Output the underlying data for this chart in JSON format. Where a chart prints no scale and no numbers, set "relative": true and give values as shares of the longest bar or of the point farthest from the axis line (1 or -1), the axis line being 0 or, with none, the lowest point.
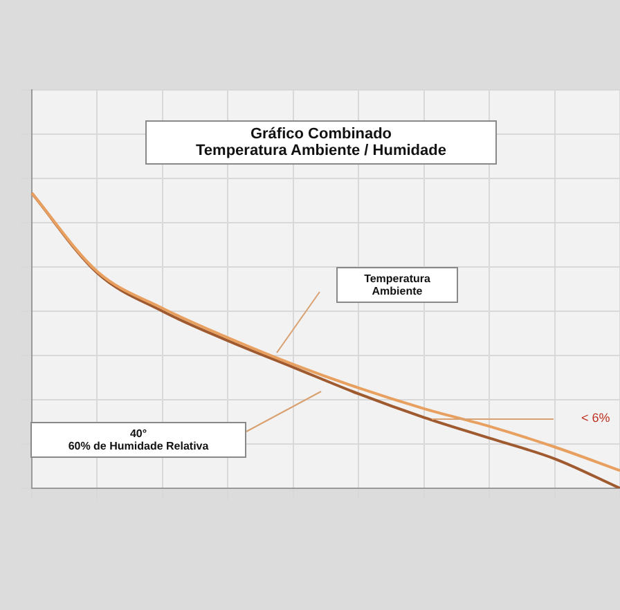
{
  "chart_data": {
    "type": "line",
    "title": "Gráfico Combinado",
    "subtitle": "Temperatura Ambiente / Humidade",
    "relative": true,
    "grid": true,
    "legend": false,
    "marker": "none",
    "line_style": "solid",
    "categories": [
      null,
      null,
      null,
      null,
      null,
      null,
      null,
      null,
      null,
      null
    ],
    "series": [
      {
        "color": "#e8a060",
        "values": [
          1,
          0.735,
          0.61,
          0.51,
          0.42,
          0.34,
          0.27,
          0.21,
          0.14,
          0.06
        ]
      },
      {
        "color": "#a05a30",
        "values": [
          1,
          0.73,
          0.6,
          0.5,
          0.41,
          0.32,
          0.24,
          0.17,
          0.1,
          0
        ]
      }
    ],
    "annotations": [
      "Temperatura Ambiente",
      "40°\n60% de Humidade Relativa",
      "< 6%"
    ]
  }
}
